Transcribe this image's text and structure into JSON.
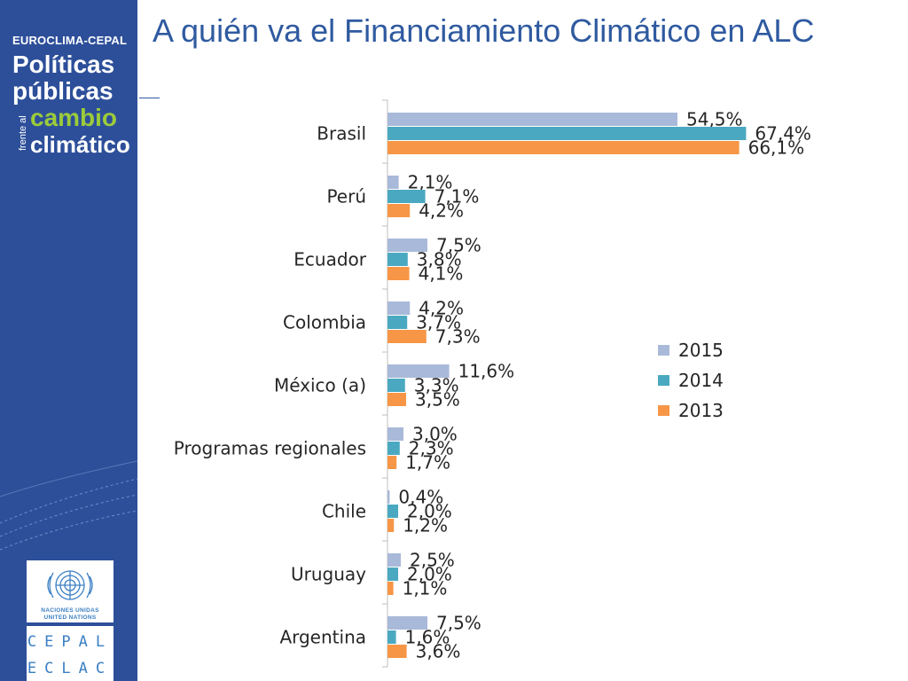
{
  "sidebar": {
    "org": "EUROCLIMA-CEPAL",
    "line1": "Políticas",
    "line2": "públicas",
    "line3": "cambio",
    "line4": "climático",
    "vertical": "frente al",
    "un_line1": "NACIONES UNIDAS",
    "un_line2": "UNITED NATIONS",
    "cepal": "CEPAL",
    "eclac": "ECLAC"
  },
  "title": "A quién va el Financiamiento Climático en ALC",
  "colors": {
    "sidebar": "#2d4f9a",
    "title": "#2f5aa0",
    "s2015": "#a9b9d9",
    "s2014": "#4aa9c0",
    "s2013": "#f79646"
  },
  "chart_data": {
    "type": "bar",
    "orientation": "horizontal",
    "categories": [
      "Brasil",
      "Perú",
      "Ecuador",
      "Colombia",
      "México (a)",
      "Programas regionales",
      "Chile",
      "Uruguay",
      "Argentina"
    ],
    "series": [
      {
        "name": "2015",
        "values": [
          54.5,
          2.1,
          7.5,
          4.2,
          11.6,
          3.0,
          0.4,
          2.5,
          7.5
        ],
        "labels": [
          "54,5%",
          "2,1%",
          "7,5%",
          "4,2%",
          "11,6%",
          "3,0%",
          "0,4%",
          "2,5%",
          "7,5%"
        ]
      },
      {
        "name": "2014",
        "values": [
          67.4,
          7.1,
          3.8,
          3.7,
          3.3,
          2.3,
          2.0,
          2.0,
          1.6
        ],
        "labels": [
          "67,4%",
          "7,1%",
          "3,8%",
          "3,7%",
          "3,3%",
          "2,3%",
          "2,0%",
          "2,0%",
          "1,6%"
        ]
      },
      {
        "name": "2013",
        "values": [
          66.1,
          4.2,
          4.1,
          7.3,
          3.5,
          1.7,
          1.2,
          1.1,
          3.6
        ],
        "labels": [
          "66,1%",
          "4,2%",
          "4,1%",
          "7,3%",
          "3,5%",
          "1,7%",
          "1,2%",
          "1,1%",
          "3,6%"
        ]
      }
    ],
    "legend_order": [
      "2015",
      "2014",
      "2013"
    ],
    "legend_position": "right",
    "xlim": [
      0,
      70
    ],
    "grid": false
  }
}
